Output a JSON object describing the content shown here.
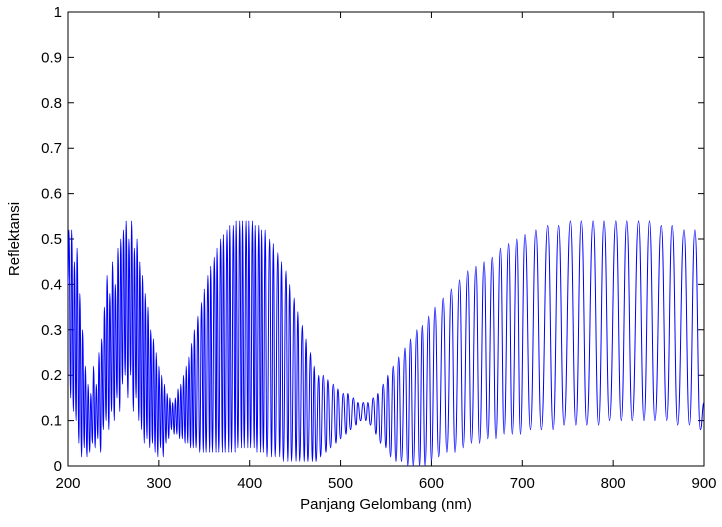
{
  "chart_data": {
    "type": "line",
    "xlabel": "Panjang Gelombang (nm)",
    "ylabel": "Reflektansi",
    "xlim": [
      200,
      900
    ],
    "ylim": [
      0,
      1
    ],
    "xticks": [
      200,
      300,
      400,
      500,
      600,
      700,
      800,
      900
    ],
    "yticks": [
      0,
      0.1,
      0.2,
      0.3,
      0.4,
      0.5,
      0.6,
      0.7,
      0.8,
      0.9,
      1
    ],
    "grid": false,
    "series": [
      {
        "color": "#0000ff",
        "x": [
          200,
          201,
          203,
          204,
          206,
          207,
          209,
          210,
          212,
          213,
          215,
          216,
          218,
          219,
          221,
          222,
          224,
          225,
          227,
          228,
          230,
          231,
          233,
          234,
          236,
          237,
          239,
          240,
          242,
          243,
          245,
          246,
          248,
          249,
          251,
          252,
          254,
          255,
          257,
          258,
          260,
          261,
          263,
          264,
          266,
          267,
          269,
          270,
          272,
          273,
          275,
          276,
          278,
          279,
          281,
          282,
          284,
          285,
          287,
          288,
          290,
          291,
          293,
          294,
          296,
          297,
          299,
          300,
          302,
          303,
          305,
          306,
          308,
          309,
          311,
          312,
          314,
          315,
          317,
          318,
          320,
          321,
          323,
          324,
          326,
          327,
          329,
          330,
          332,
          333,
          335,
          336,
          338,
          339,
          341,
          343,
          345,
          347,
          349,
          350,
          352,
          354,
          356,
          357,
          359,
          361,
          363,
          364,
          366,
          368,
          370,
          371,
          373,
          375,
          377,
          378,
          380,
          382,
          384,
          385,
          387,
          389,
          391,
          392,
          394,
          396,
          398,
          399,
          401,
          403,
          405,
          406,
          408,
          410,
          412,
          413,
          415,
          417,
          419,
          422,
          424,
          426,
          428,
          431,
          433,
          435,
          437,
          440,
          442,
          444,
          446,
          449,
          451,
          453,
          455,
          458,
          460,
          462,
          464,
          467,
          469,
          471,
          473,
          476,
          478,
          481,
          484,
          486,
          489,
          492,
          495,
          497,
          500,
          503,
          506,
          508,
          511,
          514,
          517,
          519,
          522,
          525,
          528,
          530,
          533,
          536,
          539,
          541,
          544,
          547,
          550,
          552,
          555,
          558,
          561,
          564,
          567,
          571,
          574,
          577,
          580,
          584,
          587,
          590,
          593,
          597,
          600,
          604,
          608,
          613,
          617,
          622,
          626,
          631,
          635,
          640,
          644,
          649,
          653,
          658,
          662,
          667,
          671,
          676,
          680,
          685,
          689,
          694,
          698,
          703,
          709,
          715,
          721,
          728,
          734,
          740,
          746,
          753,
          759,
          765,
          771,
          778,
          784,
          790,
          796,
          803,
          809,
          815,
          821,
          828,
          834,
          840,
          846,
          853,
          859,
          865,
          871,
          878,
          884,
          890,
          896,
          900
        ],
        "values": [
          0.4,
          0.52,
          0.15,
          0.52,
          0.12,
          0.45,
          0.1,
          0.48,
          0.05,
          0.38,
          0.02,
          0.3,
          0.04,
          0.22,
          0.02,
          0.18,
          0.03,
          0.16,
          0.05,
          0.22,
          0.04,
          0.18,
          0.06,
          0.25,
          0.03,
          0.28,
          0.08,
          0.35,
          0.1,
          0.42,
          0.08,
          0.38,
          0.12,
          0.45,
          0.1,
          0.4,
          0.15,
          0.48,
          0.12,
          0.5,
          0.18,
          0.52,
          0.2,
          0.54,
          0.15,
          0.5,
          0.2,
          0.54,
          0.12,
          0.48,
          0.15,
          0.5,
          0.1,
          0.45,
          0.08,
          0.42,
          0.05,
          0.38,
          0.06,
          0.35,
          0.04,
          0.3,
          0.05,
          0.28,
          0.03,
          0.25,
          0.02,
          0.22,
          0.04,
          0.2,
          0.02,
          0.18,
          0.05,
          0.16,
          0.06,
          0.15,
          0.08,
          0.14,
          0.07,
          0.15,
          0.07,
          0.17,
          0.06,
          0.18,
          0.06,
          0.2,
          0.05,
          0.22,
          0.05,
          0.24,
          0.04,
          0.27,
          0.04,
          0.3,
          0.04,
          0.33,
          0.03,
          0.36,
          0.03,
          0.39,
          0.03,
          0.42,
          0.03,
          0.44,
          0.03,
          0.46,
          0.03,
          0.48,
          0.03,
          0.5,
          0.03,
          0.51,
          0.03,
          0.52,
          0.03,
          0.53,
          0.03,
          0.53,
          0.03,
          0.54,
          0.04,
          0.54,
          0.04,
          0.54,
          0.04,
          0.54,
          0.04,
          0.54,
          0.04,
          0.54,
          0.04,
          0.53,
          0.03,
          0.53,
          0.03,
          0.52,
          0.03,
          0.52,
          0.02,
          0.5,
          0.02,
          0.49,
          0.02,
          0.47,
          0.02,
          0.45,
          0.01,
          0.43,
          0.01,
          0.4,
          0.01,
          0.37,
          0.01,
          0.34,
          0.01,
          0.31,
          0.01,
          0.28,
          0.01,
          0.25,
          0.01,
          0.22,
          0.01,
          0.2,
          0.02,
          0.2,
          0.03,
          0.19,
          0.04,
          0.18,
          0.05,
          0.17,
          0.06,
          0.16,
          0.07,
          0.16,
          0.08,
          0.15,
          0.09,
          0.14,
          0.1,
          0.14,
          0.1,
          0.14,
          0.09,
          0.15,
          0.07,
          0.16,
          0.05,
          0.18,
          0.04,
          0.2,
          0.02,
          0.22,
          0.01,
          0.24,
          0.01,
          0.26,
          0,
          0.28,
          0,
          0.3,
          0,
          0.31,
          0,
          0.33,
          0.01,
          0.35,
          0.02,
          0.37,
          0.03,
          0.39,
          0.03,
          0.41,
          0.04,
          0.43,
          0.05,
          0.44,
          0.05,
          0.45,
          0.06,
          0.46,
          0.06,
          0.48,
          0.07,
          0.49,
          0.07,
          0.5,
          0.07,
          0.51,
          0.08,
          0.52,
          0.08,
          0.53,
          0.08,
          0.53,
          0.09,
          0.54,
          0.09,
          0.54,
          0.09,
          0.54,
          0.09,
          0.54,
          0.1,
          0.54,
          0.1,
          0.54,
          0.1,
          0.54,
          0.1,
          0.54,
          0.1,
          0.53,
          0.1,
          0.53,
          0.09,
          0.52,
          0.09,
          0.52,
          0.08,
          0.14
        ]
      }
    ]
  }
}
